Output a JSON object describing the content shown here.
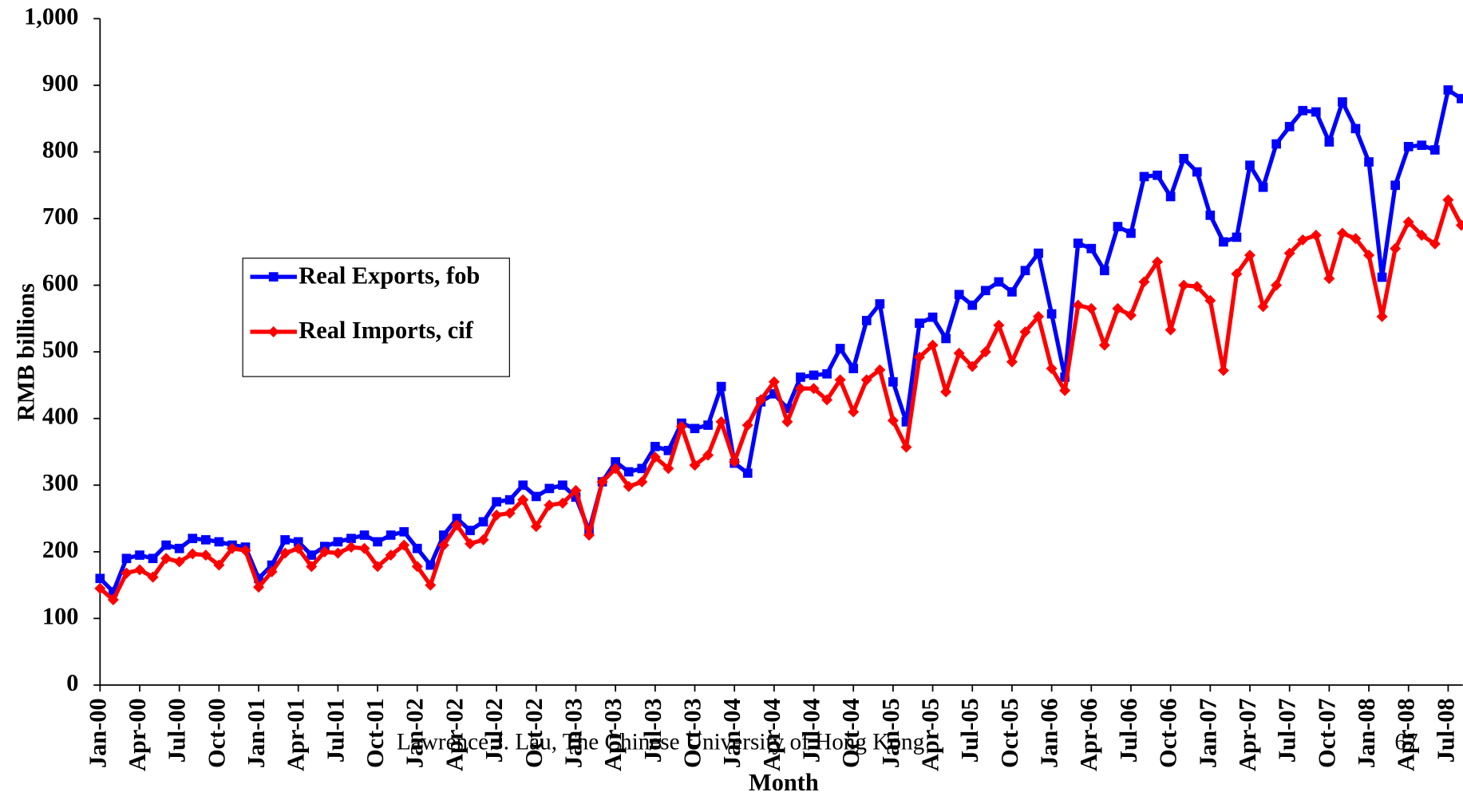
{
  "chart_data": {
    "type": "line",
    "y_label": "RMB billions",
    "x_label": "Month",
    "categories": [
      "Jan-00",
      null,
      null,
      "Apr-00",
      null,
      null,
      "Jul-00",
      null,
      null,
      "Oct-00",
      null,
      null,
      "Jan-01",
      null,
      null,
      "Apr-01",
      null,
      null,
      "Jul-01",
      null,
      null,
      "Oct-01",
      null,
      null,
      "Jan-02",
      null,
      null,
      "Apr-02",
      null,
      null,
      "Jul-02",
      null,
      null,
      "Oct-02",
      null,
      null,
      "Jan-03",
      null,
      null,
      "Apr-03",
      null,
      null,
      "Jul-03",
      null,
      null,
      "Oct-03",
      null,
      null,
      "Jan-04",
      null,
      null,
      "Apr-04",
      null,
      null,
      "Jul-04",
      null,
      null,
      "Oct-04",
      null,
      null,
      "Jan-05",
      null,
      null,
      "Apr-05",
      null,
      null,
      "Jul-05",
      null,
      null,
      "Oct-05",
      null,
      null,
      "Jan-06",
      null,
      null,
      "Apr-06",
      null,
      null,
      "Jul-06",
      null,
      null,
      "Oct-06",
      null,
      null,
      "Jan-07",
      null,
      null,
      "Apr-07",
      null,
      null,
      "Jul-07",
      null,
      null,
      "Oct-07",
      null,
      null,
      "Jan-08",
      null,
      null,
      "Apr-08",
      null,
      null,
      "Jul-08",
      null
    ],
    "series": [
      {
        "name": "Real Exports, fob",
        "color": "#0000ff",
        "marker": "square",
        "values": [
          160,
          140,
          190,
          195,
          190,
          210,
          205,
          220,
          218,
          215,
          210,
          207,
          160,
          180,
          218,
          215,
          195,
          208,
          215,
          220,
          225,
          215,
          225,
          230,
          205,
          180,
          225,
          250,
          232,
          245,
          275,
          278,
          300,
          283,
          295,
          300,
          282,
          232,
          305,
          335,
          320,
          325,
          358,
          352,
          393,
          385,
          390,
          448,
          333,
          318,
          425,
          437,
          415,
          462,
          465,
          467,
          505,
          475,
          547,
          572,
          455,
          395,
          543,
          552,
          520,
          586,
          570,
          592,
          605,
          590,
          622,
          648,
          557,
          462,
          663,
          655,
          622,
          688,
          678,
          763,
          765,
          733,
          790,
          770,
          705,
          665,
          672,
          780,
          747,
          812,
          838,
          862,
          860,
          815,
          875,
          835,
          785,
          612,
          750,
          808,
          810,
          803,
          893,
          880
        ]
      },
      {
        "name": "Real Imports, cif",
        "color": "#ff0000",
        "marker": "diamond",
        "values": [
          145,
          128,
          168,
          173,
          162,
          190,
          185,
          197,
          195,
          180,
          205,
          202,
          147,
          170,
          198,
          205,
          178,
          200,
          198,
          207,
          205,
          178,
          195,
          210,
          178,
          150,
          210,
          240,
          212,
          218,
          255,
          258,
          278,
          238,
          270,
          273,
          292,
          225,
          305,
          325,
          298,
          305,
          342,
          325,
          388,
          330,
          345,
          395,
          335,
          390,
          428,
          455,
          395,
          445,
          445,
          428,
          458,
          410,
          458,
          473,
          397,
          357,
          492,
          510,
          440,
          498,
          478,
          500,
          540,
          485,
          530,
          553,
          475,
          442,
          570,
          565,
          510,
          565,
          555,
          605,
          635,
          533,
          600,
          598,
          577,
          472,
          617,
          645,
          568,
          600,
          648,
          668,
          675,
          610,
          678,
          670,
          645,
          553,
          655,
          695,
          675,
          662,
          728,
          690
        ]
      }
    ],
    "ylim": [
      0,
      1000
    ],
    "yticks": [
      0,
      100,
      200,
      300,
      400,
      500,
      600,
      700,
      800,
      900,
      {
        "value": 1000,
        "label": "1,000"
      }
    ],
    "grid": false
  },
  "footer": {
    "author": "Lawrence J. Lau, The Chinese University of Hong Kong",
    "page": "67"
  }
}
